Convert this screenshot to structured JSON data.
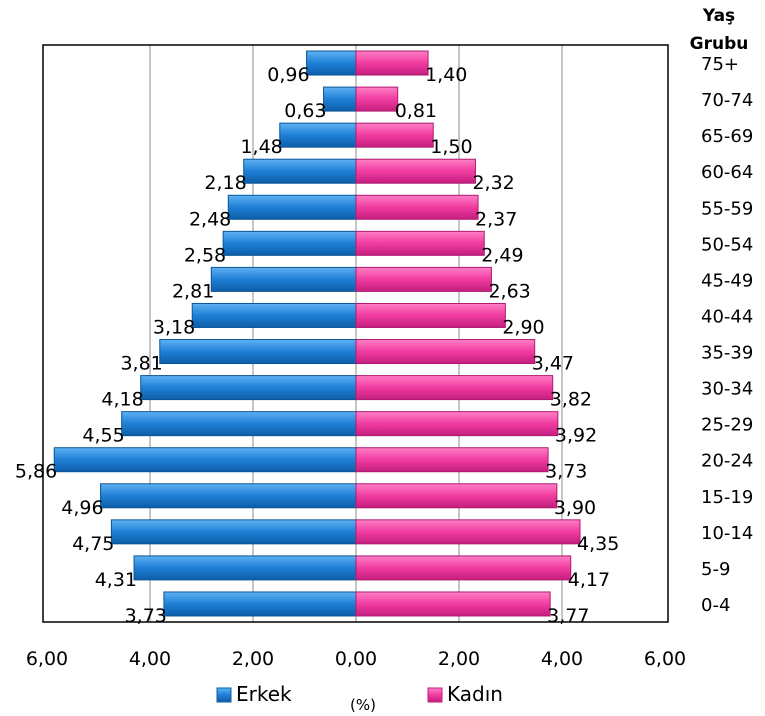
{
  "chart_data": {
    "type": "bar",
    "orientation": "horizontal",
    "layout": "population-pyramid",
    "right_axis_title": "Yaş Grubu",
    "xlabel": "(%)",
    "xlim": [
      -6,
      6
    ],
    "x_ticks": [
      "6,00",
      "4,00",
      "2,00",
      "0,00",
      "2,00",
      "4,00",
      "6,00"
    ],
    "grid": "vertical",
    "legend_position": "bottom",
    "categories": [
      "0-4",
      "5-9",
      "10-14",
      "15-19",
      "20-24",
      "25-29",
      "30-34",
      "35-39",
      "40-44",
      "45-49",
      "50-54",
      "55-59",
      "60-64",
      "65-69",
      "70-74",
      "75+"
    ],
    "series": [
      {
        "name": "Erkek",
        "color": "#1f7fd6",
        "side": "left",
        "values": [
          3.73,
          4.31,
          4.75,
          4.96,
          5.86,
          4.55,
          4.18,
          3.81,
          3.18,
          2.81,
          2.58,
          2.48,
          2.18,
          1.48,
          0.63,
          0.96
        ],
        "labels": [
          "3,73",
          "4,31",
          "4,75",
          "4,96",
          "5,86",
          "4,55",
          "4,18",
          "3,81",
          "3,18",
          "2,81",
          "2,58",
          "2,48",
          "2,18",
          "1,48",
          "0,63",
          "0,96"
        ]
      },
      {
        "name": "Kadın",
        "color": "#f03ca0",
        "side": "right",
        "values": [
          3.77,
          4.17,
          4.35,
          3.9,
          3.73,
          3.92,
          3.82,
          3.47,
          2.9,
          2.63,
          2.49,
          2.37,
          2.32,
          1.5,
          0.81,
          1.4
        ],
        "labels": [
          "3,77",
          "4,17",
          "4,35",
          "3,90",
          "3,73",
          "3,92",
          "3,82",
          "3,47",
          "2,90",
          "2,63",
          "2,49",
          "2,37",
          "2,32",
          "1,50",
          "0,81",
          "1,40"
        ]
      }
    ]
  }
}
